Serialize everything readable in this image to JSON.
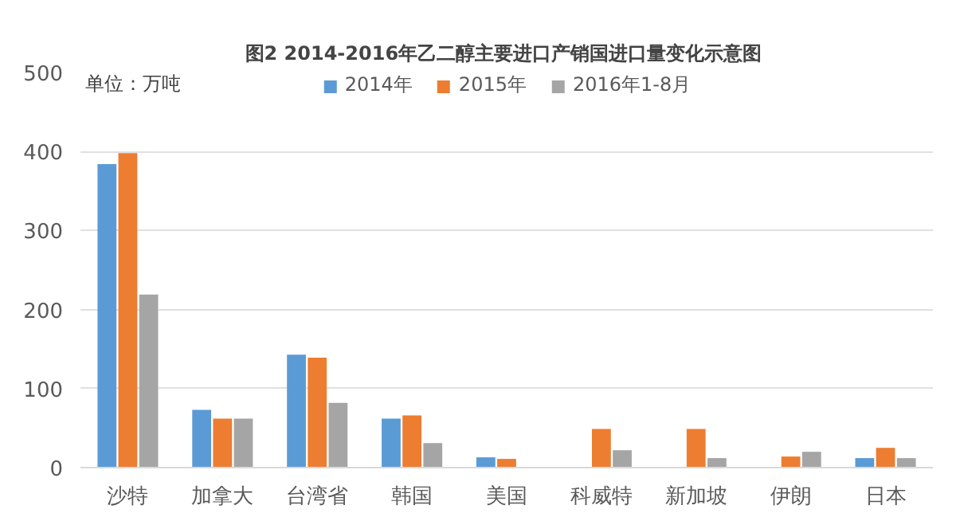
{
  "chart_data": {
    "type": "bar",
    "title": "图2  2014-2016年乙二醇主要进口产销国进口量变化示意图",
    "annotations": [
      "单位：万吨"
    ],
    "categories": [
      "沙特",
      "加拿大",
      "台湾省",
      "韩国",
      "美国",
      "科威特",
      "新加坡",
      "伊朗",
      "日本"
    ],
    "series": [
      {
        "name": "2014年",
        "color": "#5b9bd5",
        "values": [
          384,
          73,
          143,
          62,
          13,
          null,
          null,
          null,
          12
        ]
      },
      {
        "name": "2015年",
        "color": "#ed7d31",
        "values": [
          398,
          62,
          139,
          66,
          11,
          49,
          49,
          14,
          25
        ]
      },
      {
        "name": "2016年1-8月",
        "color": "#a5a5a5",
        "values": [
          219,
          62,
          82,
          31,
          null,
          22,
          12,
          20,
          12
        ]
      }
    ],
    "ylim": [
      0,
      500
    ],
    "yticks": [
      0,
      100,
      200,
      300,
      400,
      500
    ],
    "grid": "y",
    "legend": "top"
  }
}
